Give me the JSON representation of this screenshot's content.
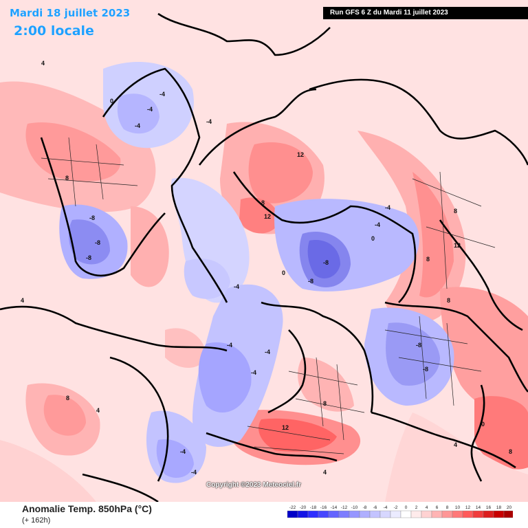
{
  "header": {
    "date": "Mardi 18 juillet 2023",
    "time": "2:00 locale",
    "run": "Run GFS 6 Z du Mardi 11 juillet 2023"
  },
  "footer": {
    "variable": "Anomalie Temp. 850hPa (°C)",
    "lead": "(+ 162h)",
    "copyright": "Copyright ©2023 Meteociel.fr"
  },
  "legend": {
    "ticks": [
      "-22",
      "-20",
      "-18",
      "-16",
      "-14",
      "-12",
      "-10",
      "-8",
      "-6",
      "-4",
      "-2",
      "0",
      "2",
      "4",
      "6",
      "8",
      "10",
      "12",
      "14",
      "16",
      "18",
      "20"
    ],
    "colors": [
      "#0000c8",
      "#1414e6",
      "#2d2dff",
      "#4646ff",
      "#6464ff",
      "#7d7dff",
      "#9696ff",
      "#afafff",
      "#c3c3ff",
      "#d7d7ff",
      "#ebebff",
      "#ffffff",
      "#ffebeb",
      "#ffd2d2",
      "#ffb4b4",
      "#ff9696",
      "#ff7878",
      "#ff5a5a",
      "#f03c3c",
      "#dc1e1e",
      "#c80000",
      "#aa0000"
    ]
  },
  "map": {
    "anomaly_labels": [
      "-4",
      "-4",
      "-4",
      "-4",
      "-8",
      "-8",
      "-8",
      "-8",
      "-8",
      "-4",
      "-4",
      "-4",
      "-4",
      "-4",
      "-4",
      "-8",
      "-8",
      "-4",
      "-4",
      "0",
      "0",
      "0",
      "0",
      "4",
      "4",
      "4",
      "4",
      "4",
      "8",
      "8",
      "8",
      "8",
      "8",
      "8",
      "12",
      "12",
      "12",
      "12",
      "8",
      "8"
    ]
  }
}
